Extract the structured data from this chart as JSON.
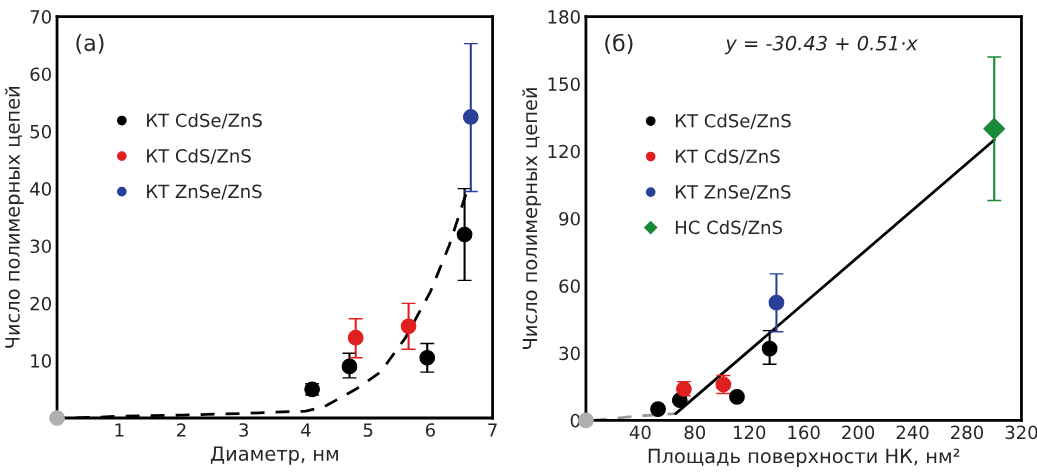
{
  "chart_data": [
    {
      "type": "scatter",
      "xlabel": "Диаметр, нм",
      "ylabel": "Число полимерных цепей",
      "xlim": [
        0,
        7
      ],
      "ylim": [
        0,
        70
      ],
      "xticks": [
        1,
        2,
        3,
        4,
        5,
        6,
        7
      ],
      "yticks": [
        10,
        20,
        30,
        40,
        50,
        60,
        70
      ],
      "grid": false,
      "legend": "upper left",
      "annotations": [
        "(a)"
      ],
      "series": [
        {
          "type": "line",
          "color": "#000000",
          "line_style": "dashed",
          "marker": "none",
          "x": [
            0.3,
            1,
            2,
            3,
            3.5,
            4,
            4.3,
            4.8,
            5.2,
            5.6,
            6,
            6.3,
            6.6
          ],
          "values": [
            0,
            0.3,
            0.5,
            0.8,
            1,
            1.2,
            2,
            5,
            8,
            14,
            22,
            30,
            40
          ]
        },
        {
          "type": "scatter",
          "color": "#b0b0b0",
          "marker": "circle",
          "x": [
            0
          ],
          "values": [
            0
          ]
        },
        {
          "name": "КТ CdSe/ZnS",
          "type": "scatter",
          "color": "#000000",
          "marker": "circle",
          "x": [
            4.1,
            4.7,
            5.95,
            6.55
          ],
          "values": [
            5,
            9,
            10.5,
            32
          ],
          "errors": [
            [
              4,
              6
            ],
            [
              7,
              11.3
            ],
            [
              8,
              13
            ],
            [
              24,
              40
            ]
          ]
        },
        {
          "name": "КТ CdS/ZnS",
          "type": "scatter",
          "color": "#e02020",
          "marker": "circle",
          "x": [
            4.8,
            5.65
          ],
          "values": [
            14,
            16
          ],
          "errors": [
            [
              10.5,
              17.3
            ],
            [
              12,
              20
            ]
          ]
        },
        {
          "name": "КТ ZnSe/ZnS",
          "type": "scatter",
          "color": "#2a3f9a",
          "marker": "circle",
          "x": [
            6.65
          ],
          "values": [
            52.5
          ],
          "errors": [
            [
              39.5,
              65.3
            ]
          ]
        }
      ]
    },
    {
      "type": "scatter",
      "xlabel": "Площадь поверхности НК, нм²",
      "ylabel": "Число полимерных цепей",
      "xlim": [
        0,
        320
      ],
      "ylim": [
        0,
        180
      ],
      "xticks": [
        40,
        80,
        120,
        160,
        200,
        240,
        280,
        320
      ],
      "yticks": [
        0,
        30,
        60,
        90,
        120,
        150,
        180
      ],
      "grid": false,
      "legend": "upper left",
      "annotations": [
        "(б)",
        "y = -30.43 + 0.51·x"
      ],
      "series": [
        {
          "type": "line",
          "color": "#999999",
          "line_style": "dashed",
          "marker": "none",
          "x": [
            5,
            40,
            66
          ],
          "values": [
            0,
            2,
            3
          ]
        },
        {
          "type": "line",
          "color": "#000000",
          "line_style": "solid",
          "marker": "none",
          "x": [
            66,
            300
          ],
          "values": [
            3,
            125
          ]
        },
        {
          "type": "scatter",
          "color": "#b0b0b0",
          "marker": "circle",
          "x": [
            0
          ],
          "values": [
            0
          ]
        },
        {
          "name": "КТ CdSe/ZnS",
          "type": "scatter",
          "color": "#000000",
          "marker": "circle",
          "x": [
            53,
            69,
            111,
            135
          ],
          "values": [
            5,
            9,
            10.5,
            32
          ],
          "errors": [
            null,
            null,
            null,
            [
              25,
              40
            ]
          ]
        },
        {
          "name": "КТ CdS/ZnS",
          "type": "scatter",
          "color": "#e02020",
          "marker": "circle",
          "x": [
            72,
            101
          ],
          "values": [
            14,
            16
          ],
          "errors": [
            [
              11,
              17.3
            ],
            [
              12,
              20
            ]
          ]
        },
        {
          "name": "КТ ZnSe/ZnS",
          "type": "scatter",
          "color": "#2a3f9a",
          "marker": "circle",
          "x": [
            140
          ],
          "values": [
            52.5
          ],
          "errors": [
            [
              39.5,
              65.3
            ]
          ]
        },
        {
          "name": "НС CdS/ZnS",
          "type": "scatter",
          "color": "#1a8a3a",
          "marker": "diamond",
          "x": [
            300
          ],
          "values": [
            130
          ],
          "errors": [
            [
              98,
              162
            ]
          ]
        }
      ]
    }
  ]
}
